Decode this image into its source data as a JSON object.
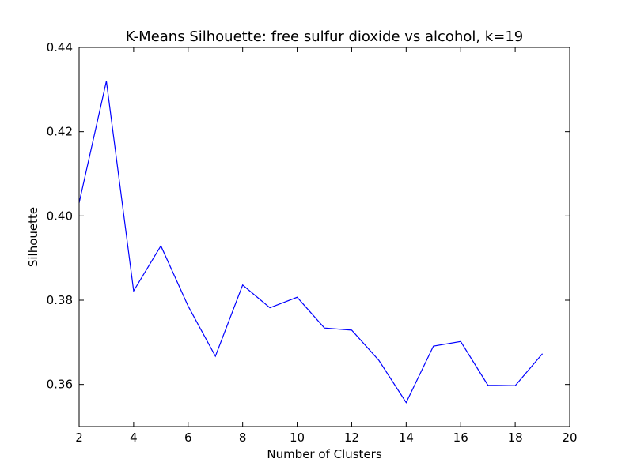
{
  "chart_data": {
    "type": "line",
    "title": "K-Means Silhouette: free sulfur dioxide vs alcohol, k=19",
    "xlabel": "Number of Clusters",
    "ylabel": "Silhouette",
    "xlim": [
      2,
      20
    ],
    "ylim": [
      0.35,
      0.44
    ],
    "xticks": [
      2,
      4,
      6,
      8,
      10,
      12,
      14,
      16,
      18,
      20
    ],
    "yticks": [
      0.36,
      0.38,
      0.4,
      0.42,
      0.44
    ],
    "xtick_labels": [
      "2",
      "4",
      "6",
      "8",
      "10",
      "12",
      "14",
      "16",
      "18",
      "20"
    ],
    "ytick_labels": [
      "0.36",
      "0.38",
      "0.40",
      "0.42",
      "0.44"
    ],
    "grid": false,
    "series": [
      {
        "color": "#0000ff",
        "x": [
          2,
          3,
          4,
          5,
          6,
          7,
          8,
          9,
          10,
          11,
          12,
          13,
          14,
          15,
          16,
          17,
          18,
          19
        ],
        "y": [
          0.4031,
          0.432,
          0.3822,
          0.3929,
          0.3786,
          0.3667,
          0.3836,
          0.3782,
          0.3807,
          0.3734,
          0.3729,
          0.3657,
          0.3557,
          0.3691,
          0.3702,
          0.3598,
          0.3597,
          0.3673
        ]
      }
    ]
  }
}
